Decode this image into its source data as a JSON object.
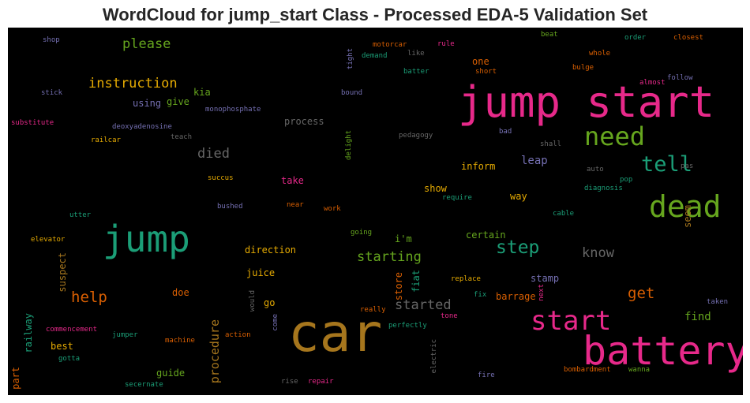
{
  "chart_data": {
    "type": "wordcloud",
    "title": "WordCloud for jump_start Class - Processed EDA-5 Validation Set",
    "palette": [
      "#1b9e77",
      "#d95f02",
      "#7570b3",
      "#e7298a",
      "#66a61e",
      "#e6ab02",
      "#a6761d",
      "#666666"
    ],
    "background": "#000000",
    "words": [
      {
        "text": "jump start",
        "c": 3
      },
      {
        "text": "car",
        "c": 6
      },
      {
        "text": "battery",
        "c": 3
      },
      {
        "text": "jump",
        "c": 0
      },
      {
        "text": "dead",
        "c": 4
      },
      {
        "text": "need",
        "c": 4
      },
      {
        "text": "start",
        "c": 3
      },
      {
        "text": "tell",
        "c": 0
      },
      {
        "text": "step",
        "c": 0
      },
      {
        "text": "starting",
        "c": 4
      },
      {
        "text": "help",
        "c": 1
      },
      {
        "text": "get",
        "c": 1
      },
      {
        "text": "know",
        "c": 7
      },
      {
        "text": "started",
        "c": 7
      },
      {
        "text": "instruction",
        "c": 5
      },
      {
        "text": "please",
        "c": 4
      },
      {
        "text": "died",
        "c": 7
      },
      {
        "text": "procedure",
        "c": 6
      },
      {
        "text": "leap",
        "c": 2
      },
      {
        "text": "find",
        "c": 4
      },
      {
        "text": "direction",
        "c": 5
      },
      {
        "text": "suspect",
        "c": 6
      },
      {
        "text": "store",
        "c": 1
      },
      {
        "text": "take",
        "c": 3
      },
      {
        "text": "process",
        "c": 7
      },
      {
        "text": "inform",
        "c": 5
      },
      {
        "text": "show",
        "c": 5
      },
      {
        "text": "way",
        "c": 5
      },
      {
        "text": "certain",
        "c": 4
      },
      {
        "text": "stamp",
        "c": 2
      },
      {
        "text": "barrage",
        "c": 1
      },
      {
        "text": "juice",
        "c": 5
      },
      {
        "text": "doe",
        "c": 1
      },
      {
        "text": "guide",
        "c": 4
      },
      {
        "text": "using",
        "c": 2
      },
      {
        "text": "give",
        "c": 4
      },
      {
        "text": "kia",
        "c": 4
      },
      {
        "text": "best",
        "c": 5
      },
      {
        "text": "go",
        "c": 5
      },
      {
        "text": "i'm",
        "c": 4
      },
      {
        "text": "fiat",
        "c": 0
      },
      {
        "text": "railway",
        "c": 0
      },
      {
        "text": "part",
        "c": 1
      },
      {
        "text": "one",
        "c": 1
      },
      {
        "text": "seem",
        "c": 6
      },
      {
        "text": "fix",
        "c": 0
      },
      {
        "text": "really",
        "c": 1
      },
      {
        "text": "replace",
        "c": 5
      },
      {
        "text": "shop",
        "c": 2
      },
      {
        "text": "motorcar",
        "c": 1
      },
      {
        "text": "rule",
        "c": 3
      },
      {
        "text": "beat",
        "c": 4
      },
      {
        "text": "order",
        "c": 0
      },
      {
        "text": "closest",
        "c": 1
      },
      {
        "text": "tight",
        "c": 2
      },
      {
        "text": "demand",
        "c": 0
      },
      {
        "text": "like",
        "c": 7
      },
      {
        "text": "whole",
        "c": 1
      },
      {
        "text": "batter",
        "c": 0
      },
      {
        "text": "short",
        "c": 1
      },
      {
        "text": "bulge",
        "c": 1
      },
      {
        "text": "follow",
        "c": 2
      },
      {
        "text": "almost",
        "c": 3
      },
      {
        "text": "stick",
        "c": 2
      },
      {
        "text": "bound",
        "c": 2
      },
      {
        "text": "monophosphate",
        "c": 2
      },
      {
        "text": "substitute",
        "c": 3
      },
      {
        "text": "deoxyadenosine",
        "c": 2
      },
      {
        "text": "teach",
        "c": 7
      },
      {
        "text": "railcar",
        "c": 5
      },
      {
        "text": "delight",
        "c": 4
      },
      {
        "text": "pedagogy",
        "c": 7
      },
      {
        "text": "bad",
        "c": 2
      },
      {
        "text": "shall",
        "c": 7
      },
      {
        "text": "succus",
        "c": 5
      },
      {
        "text": "auto",
        "c": 7
      },
      {
        "text": "pas",
        "c": 7
      },
      {
        "text": "pop",
        "c": 0
      },
      {
        "text": "diagnosis",
        "c": 0
      },
      {
        "text": "require",
        "c": 0
      },
      {
        "text": "utter",
        "c": 0
      },
      {
        "text": "bushed",
        "c": 2
      },
      {
        "text": "near",
        "c": 1
      },
      {
        "text": "work",
        "c": 1
      },
      {
        "text": "cable",
        "c": 0
      },
      {
        "text": "elevator",
        "c": 5
      },
      {
        "text": "going",
        "c": 4
      },
      {
        "text": "next",
        "c": 3
      },
      {
        "text": "would",
        "c": 7
      },
      {
        "text": "taken",
        "c": 2
      },
      {
        "text": "come",
        "c": 2
      },
      {
        "text": "tone",
        "c": 3
      },
      {
        "text": "perfectly",
        "c": 0
      },
      {
        "text": "commencement",
        "c": 3
      },
      {
        "text": "jumper",
        "c": 0
      },
      {
        "text": "machine",
        "c": 1
      },
      {
        "text": "action",
        "c": 1
      },
      {
        "text": "electric",
        "c": 7
      },
      {
        "text": "gotta",
        "c": 0
      },
      {
        "text": "bombardment",
        "c": 1
      },
      {
        "text": "wanna",
        "c": 4
      },
      {
        "text": "fire",
        "c": 2
      },
      {
        "text": "secernate",
        "c": 0
      },
      {
        "text": "rise",
        "c": 7
      },
      {
        "text": "repair",
        "c": 3
      }
    ]
  }
}
